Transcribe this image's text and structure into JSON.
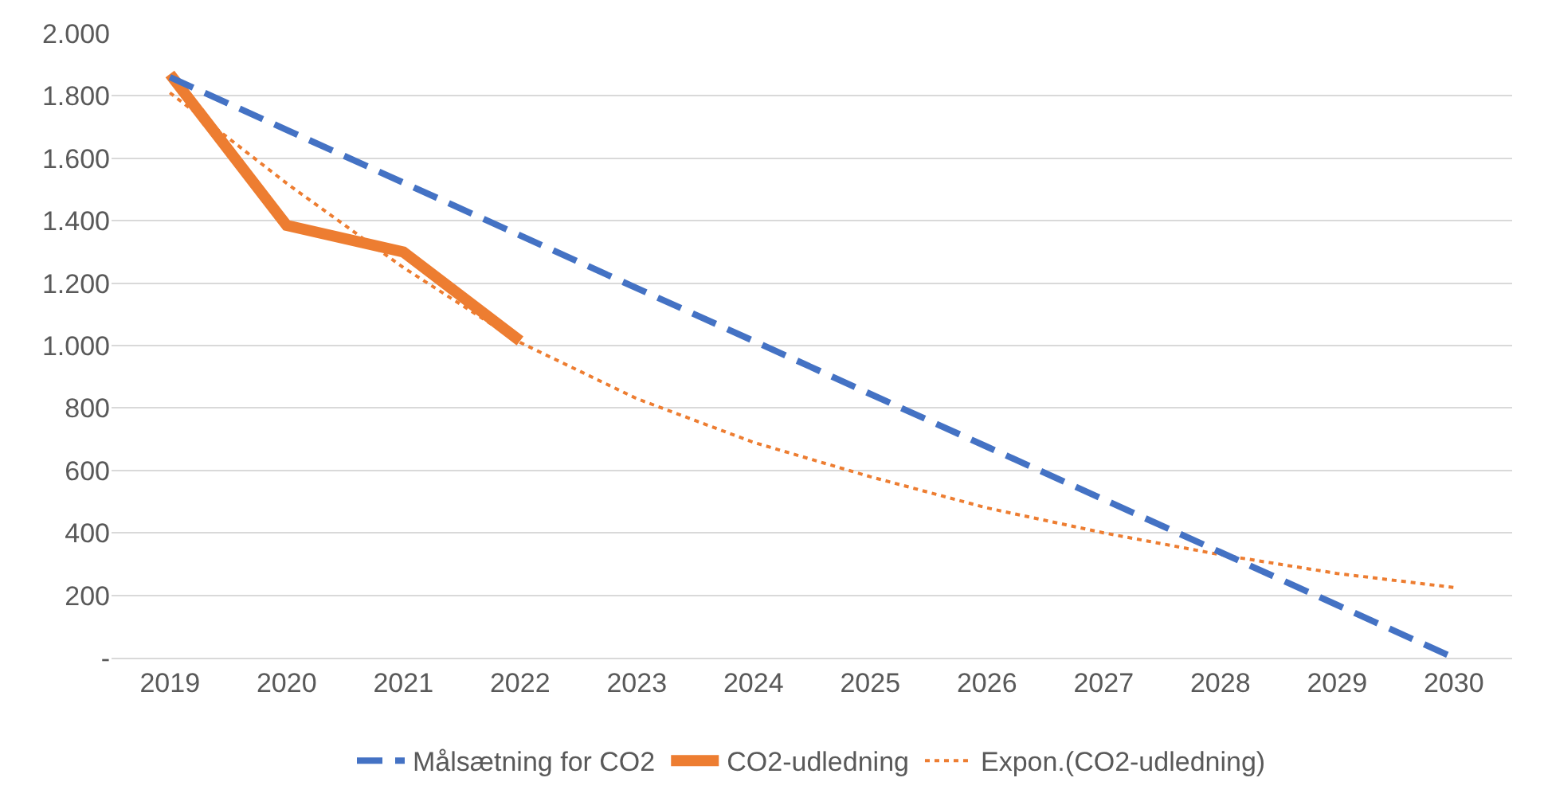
{
  "chart_data": {
    "type": "line",
    "categories": [
      "2019",
      "2020",
      "2021",
      "2022",
      "2023",
      "2024",
      "2025",
      "2026",
      "2027",
      "2028",
      "2029",
      "2030"
    ],
    "series": [
      {
        "name": "Målsætning for CO2",
        "color": "#4472c4",
        "line_style": "dashed",
        "values": [
          1860,
          1691,
          1522,
          1353,
          1184,
          1015,
          845,
          676,
          507,
          338,
          169,
          0
        ]
      },
      {
        "name": "CO2-udledning",
        "color": "#ed7d31",
        "line_style": "solid",
        "values": [
          1870,
          1385,
          1300,
          1015,
          null,
          null,
          null,
          null,
          null,
          null,
          null,
          null
        ]
      },
      {
        "name": "Expon.(CO2-udledning)",
        "color": "#ed7d31",
        "line_style": "dotted",
        "values": [
          1810,
          1520,
          1250,
          1010,
          830,
          690,
          580,
          480,
          400,
          330,
          270,
          225
        ]
      }
    ],
    "ylim": [
      0,
      2000
    ],
    "yticks": [
      {
        "value": 0,
        "label": "-"
      },
      200,
      400,
      600,
      800,
      {
        "value": 1000,
        "label": "1.000"
      },
      {
        "value": 1200,
        "label": "1.200"
      },
      {
        "value": 1400,
        "label": "1.400"
      },
      {
        "value": 1600,
        "label": "1.600"
      },
      {
        "value": 1800,
        "label": "1.800"
      },
      {
        "value": 2000,
        "label": "2.000"
      }
    ],
    "grid": "y",
    "legend": "bottom",
    "marker": "none"
  }
}
